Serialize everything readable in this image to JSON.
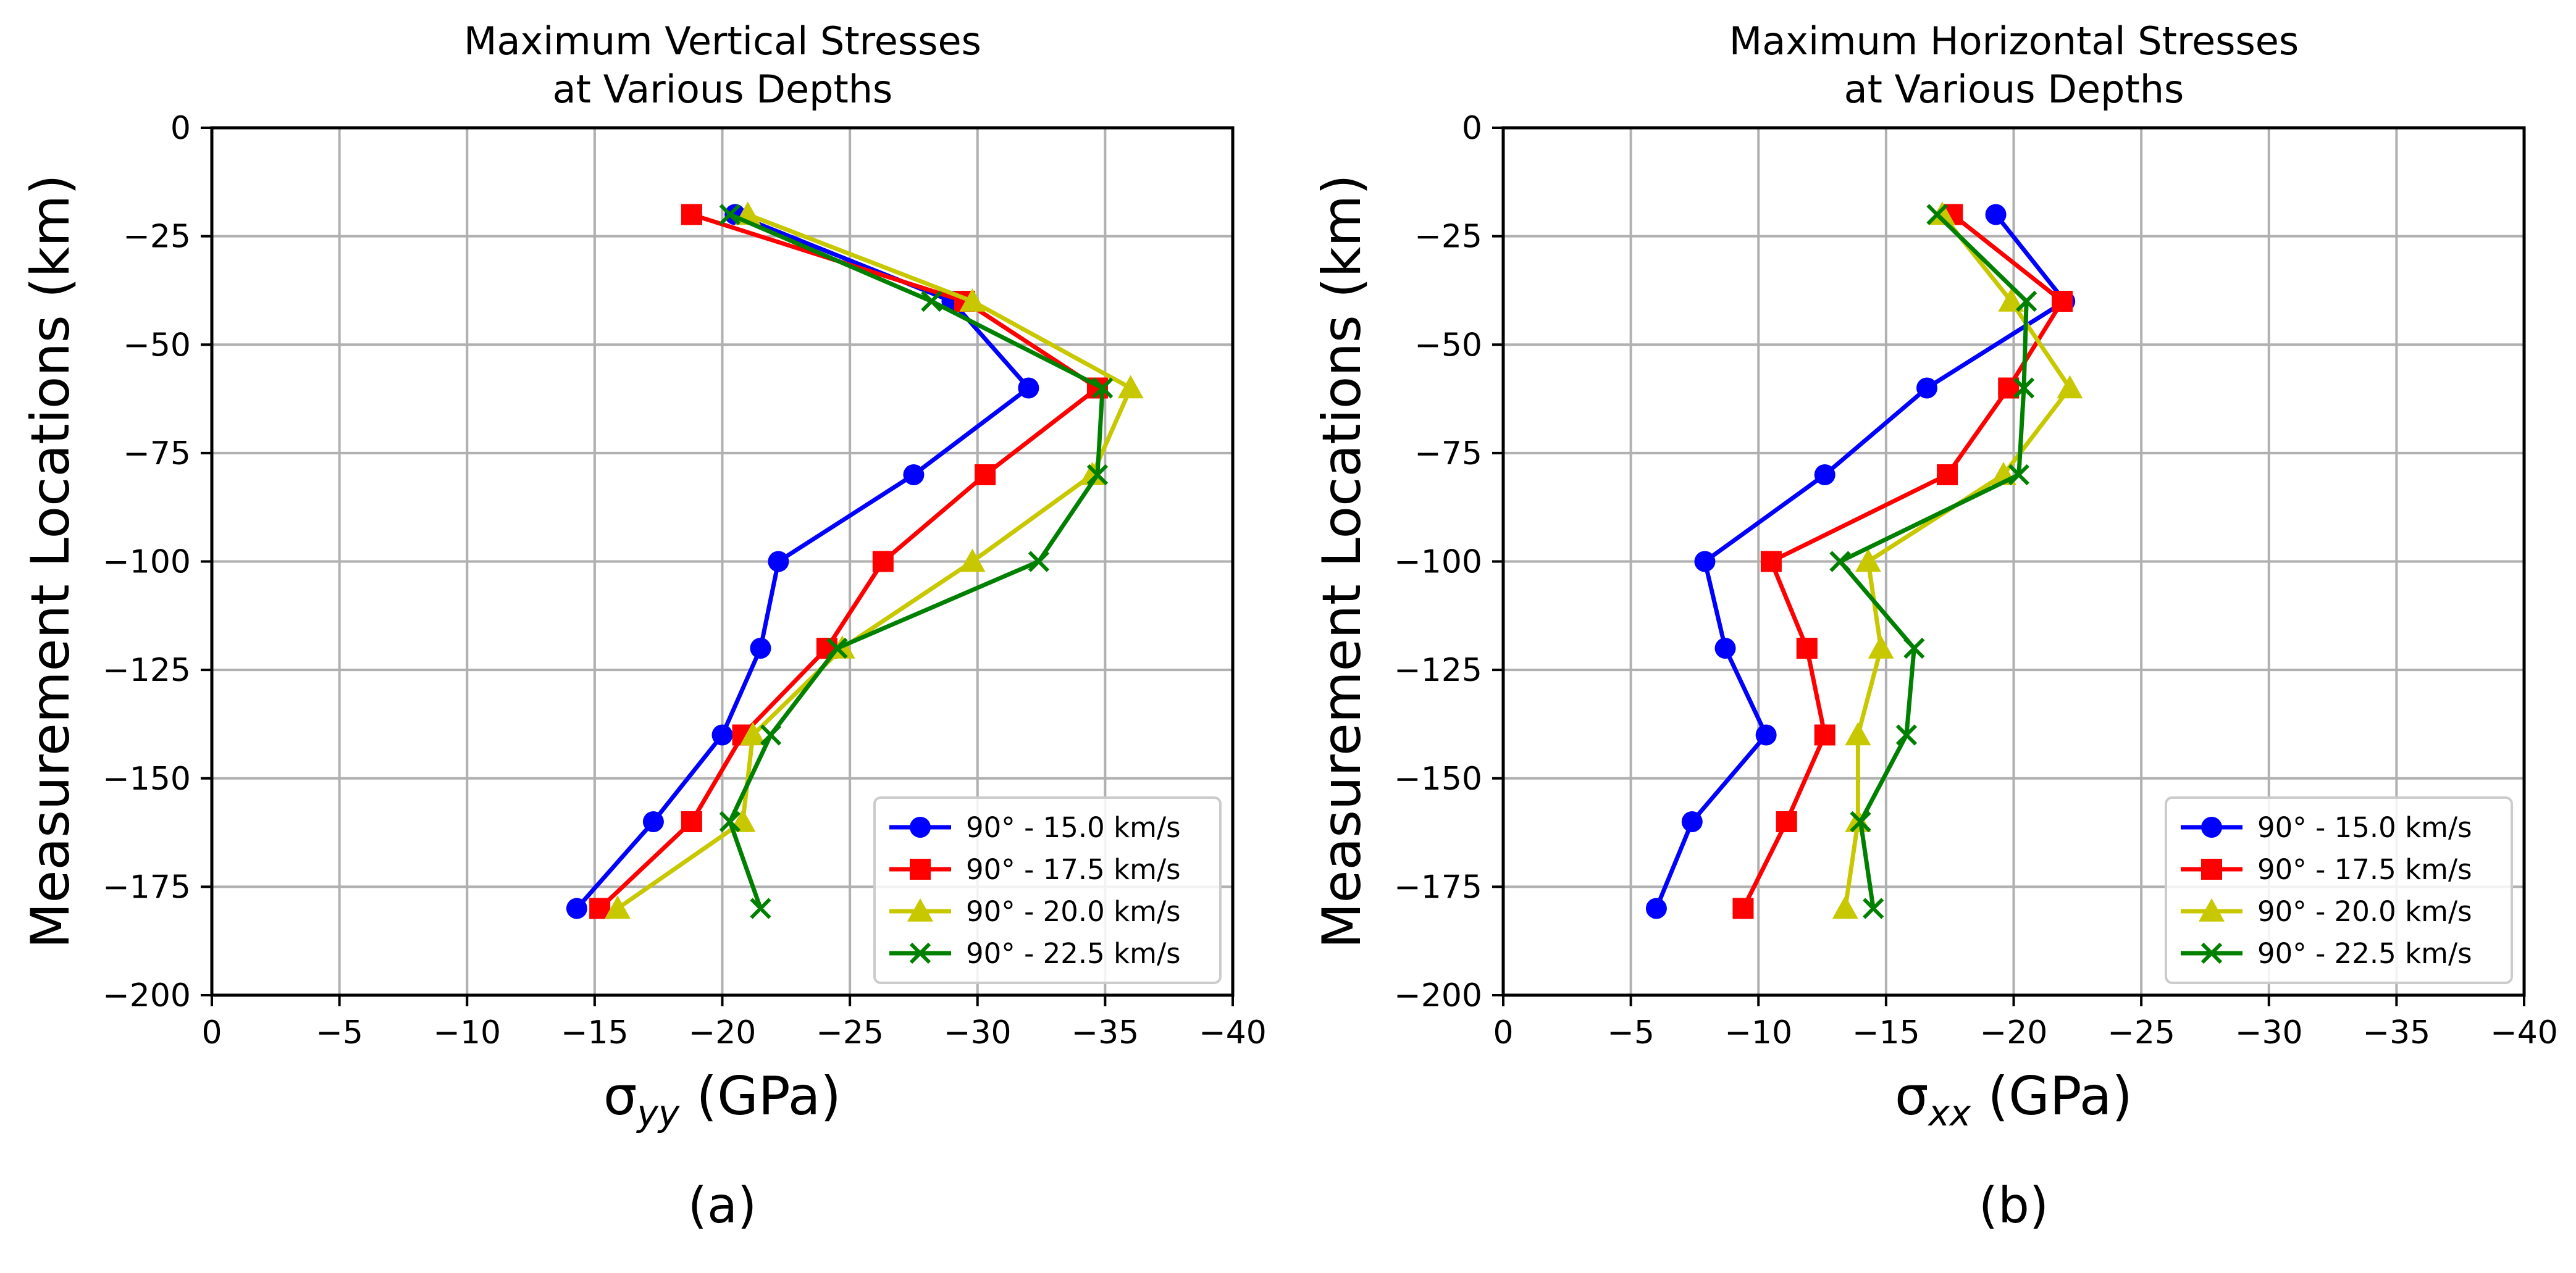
{
  "chart_data": [
    {
      "type": "line",
      "panel_label": "(a)",
      "title": "Maximum Vertical Stresses\nat Various Depths",
      "xlabel": "σ",
      "xlabel_sub": "yy",
      "xlabel_unit": " (GPa)",
      "ylabel": "Measurement Locations (km)",
      "xlim": [
        0,
        -40
      ],
      "ylim": [
        -200,
        0
      ],
      "xticks": [
        0,
        -5,
        -10,
        -15,
        -20,
        -25,
        -30,
        -35,
        -40
      ],
      "yticks": [
        0,
        -25,
        -50,
        -75,
        -100,
        -125,
        -150,
        -175,
        -200
      ],
      "xtick_labels": [
        "0",
        "−5",
        "−10",
        "−15",
        "−20",
        "−25",
        "−30",
        "−35",
        "−40"
      ],
      "ytick_labels": [
        "0",
        "−25",
        "−50",
        "−75",
        "−100",
        "−125",
        "−150",
        "−175",
        "−200"
      ],
      "grid": true,
      "legend_position": "lower-right",
      "series": [
        {
          "name": "90° - 15.0 km/s",
          "color": "#0000ff",
          "marker": "circle",
          "points": [
            [
              -20.5,
              -20
            ],
            [
              -29,
              -40
            ],
            [
              -32,
              -60
            ],
            [
              -27.5,
              -80
            ],
            [
              -22.2,
              -100
            ],
            [
              -21.5,
              -120
            ],
            [
              -20,
              -140
            ],
            [
              -17.3,
              -160
            ],
            [
              -14.3,
              -180
            ]
          ]
        },
        {
          "name": "90° - 17.5 km/s",
          "color": "#ff0000",
          "marker": "square",
          "points": [
            [
              -18.8,
              -20
            ],
            [
              -29.5,
              -40
            ],
            [
              -34.7,
              -60
            ],
            [
              -30.3,
              -80
            ],
            [
              -26.3,
              -100
            ],
            [
              -24.1,
              -120
            ],
            [
              -20.8,
              -140
            ],
            [
              -18.8,
              -160
            ],
            [
              -15.2,
              -180
            ]
          ]
        },
        {
          "name": "90° - 20.0 km/s",
          "color": "#c8c800",
          "marker": "triangle",
          "points": [
            [
              -21,
              -20
            ],
            [
              -29.8,
              -40
            ],
            [
              -36,
              -60
            ],
            [
              -34.5,
              -80
            ],
            [
              -29.8,
              -100
            ],
            [
              -24.7,
              -120
            ],
            [
              -21.2,
              -140
            ],
            [
              -20.8,
              -160
            ],
            [
              -15.9,
              -180
            ]
          ]
        },
        {
          "name": "90° - 22.5 km/s",
          "color": "#008000",
          "marker": "x",
          "points": [
            [
              -20.3,
              -20
            ],
            [
              -28.2,
              -40
            ],
            [
              -34.9,
              -60
            ],
            [
              -34.7,
              -80
            ],
            [
              -32.4,
              -100
            ],
            [
              -24.5,
              -120
            ],
            [
              -21.9,
              -140
            ],
            [
              -20.3,
              -160
            ],
            [
              -21.5,
              -180
            ]
          ]
        }
      ]
    },
    {
      "type": "line",
      "panel_label": "(b)",
      "title": "Maximum Horizontal Stresses\nat Various Depths",
      "xlabel": "σ",
      "xlabel_sub": "xx",
      "xlabel_unit": " (GPa)",
      "ylabel": "Measurement Locations (km)",
      "xlim": [
        0,
        -40
      ],
      "ylim": [
        -200,
        0
      ],
      "xticks": [
        0,
        -5,
        -10,
        -15,
        -20,
        -25,
        -30,
        -35,
        -40
      ],
      "yticks": [
        0,
        -25,
        -50,
        -75,
        -100,
        -125,
        -150,
        -175,
        -200
      ],
      "xtick_labels": [
        "0",
        "−5",
        "−10",
        "−15",
        "−20",
        "−25",
        "−30",
        "−35",
        "−40"
      ],
      "ytick_labels": [
        "0",
        "−25",
        "−50",
        "−75",
        "−100",
        "−125",
        "−150",
        "−175",
        "−200"
      ],
      "grid": true,
      "legend_position": "lower-right",
      "series": [
        {
          "name": "90° - 15.0 km/s",
          "color": "#0000ff",
          "marker": "circle",
          "points": [
            [
              -19.3,
              -20
            ],
            [
              -22,
              -40
            ],
            [
              -16.6,
              -60
            ],
            [
              -12.6,
              -80
            ],
            [
              -7.9,
              -100
            ],
            [
              -8.7,
              -120
            ],
            [
              -10.3,
              -140
            ],
            [
              -7.4,
              -160
            ],
            [
              -6,
              -180
            ]
          ]
        },
        {
          "name": "90° - 17.5 km/s",
          "color": "#ff0000",
          "marker": "square",
          "points": [
            [
              -17.6,
              -20
            ],
            [
              -21.9,
              -40
            ],
            [
              -19.8,
              -60
            ],
            [
              -17.4,
              -80
            ],
            [
              -10.5,
              -100
            ],
            [
              -11.9,
              -120
            ],
            [
              -12.6,
              -140
            ],
            [
              -11.1,
              -160
            ],
            [
              -9.4,
              -180
            ]
          ]
        },
        {
          "name": "90° - 20.0 km/s",
          "color": "#c8c800",
          "marker": "triangle",
          "points": [
            [
              -17.2,
              -20
            ],
            [
              -19.9,
              -40
            ],
            [
              -22.2,
              -60
            ],
            [
              -19.6,
              -80
            ],
            [
              -14.3,
              -100
            ],
            [
              -14.8,
              -120
            ],
            [
              -13.9,
              -140
            ],
            [
              -13.9,
              -160
            ],
            [
              -13.4,
              -180
            ]
          ]
        },
        {
          "name": "90° - 22.5 km/s",
          "color": "#008000",
          "marker": "x",
          "points": [
            [
              -17,
              -20
            ],
            [
              -20.5,
              -40
            ],
            [
              -20.4,
              -60
            ],
            [
              -20.2,
              -80
            ],
            [
              -13.2,
              -100
            ],
            [
              -16.1,
              -120
            ],
            [
              -15.8,
              -140
            ],
            [
              -14,
              -160
            ],
            [
              -14.5,
              -180
            ]
          ]
        }
      ]
    }
  ]
}
